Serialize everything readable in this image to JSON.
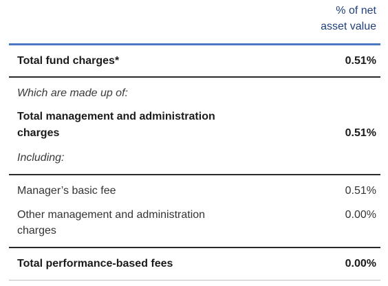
{
  "column_header": {
    "line1": "% of net",
    "line2": "asset value"
  },
  "rows": {
    "total_fund_charges": {
      "label": "Total fund charges*",
      "value": "0.51%"
    },
    "made_up_of": {
      "label": "Which are made up of:"
    },
    "total_management": {
      "label_line1": "Total management and administration",
      "label_line2": "charges",
      "value": "0.51%"
    },
    "including": {
      "label": "Including:"
    },
    "managers_basic_fee": {
      "label": "Manager’s basic fee",
      "value": "0.51%"
    },
    "other_management": {
      "label_line1": "Other management and administration",
      "label_line2": "charges",
      "value": "0.00%"
    },
    "performance_fees": {
      "label": "Total performance-based fees",
      "value": "0.00%"
    }
  },
  "colors": {
    "header_text": "#1f3f7a",
    "accent_rule": "#4a78c0",
    "dark_rule": "#2a2a2a"
  }
}
